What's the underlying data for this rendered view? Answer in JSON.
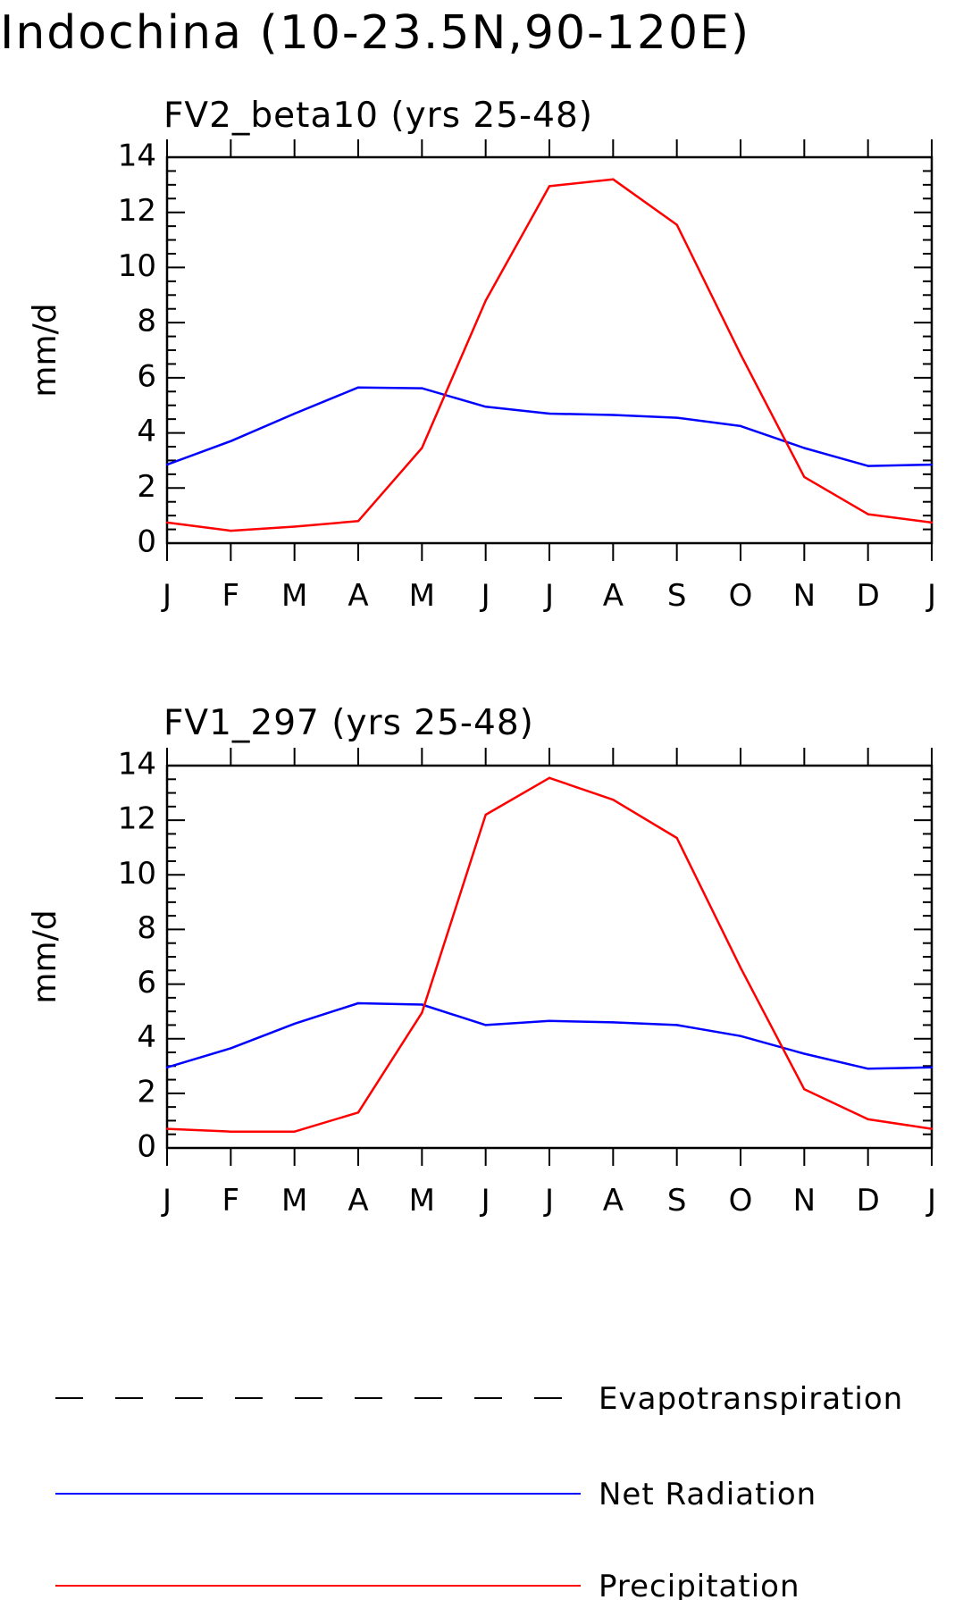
{
  "title": "Indochina (10-23.5N,90-120E)",
  "colors": {
    "net_radiation": "#0000ff",
    "precipitation": "#ff0000",
    "evapotranspiration": "#000000",
    "axes": "#000000"
  },
  "chart_data": [
    {
      "type": "line",
      "title": "FV2_beta10 (yrs 25-48)",
      "xlabel": "",
      "ylabel": "mm/d",
      "ylim": [
        0,
        14
      ],
      "yticks": [
        "0",
        "2",
        "4",
        "6",
        "8",
        "10",
        "12",
        "14"
      ],
      "categories": [
        "J",
        "F",
        "M",
        "A",
        "M",
        "J",
        "J",
        "A",
        "S",
        "O",
        "N",
        "D",
        "J"
      ],
      "series": [
        {
          "name": "Net Radiation",
          "color": "#0000ff",
          "values": [
            2.85,
            3.7,
            4.7,
            5.65,
            5.62,
            4.95,
            4.7,
            4.65,
            4.55,
            4.25,
            3.45,
            2.8,
            2.85
          ]
        },
        {
          "name": "Precipitation",
          "color": "#ff0000",
          "values": [
            0.75,
            0.45,
            0.6,
            0.8,
            3.45,
            8.8,
            12.95,
            13.2,
            11.55,
            6.85,
            2.4,
            1.05,
            0.75
          ]
        }
      ]
    },
    {
      "type": "line",
      "title": "FV1_297 (yrs 25-48)",
      "xlabel": "",
      "ylabel": "mm/d",
      "ylim": [
        0,
        14
      ],
      "yticks": [
        "0",
        "2",
        "4",
        "6",
        "8",
        "10",
        "12",
        "14"
      ],
      "categories": [
        "J",
        "F",
        "M",
        "A",
        "M",
        "J",
        "J",
        "A",
        "S",
        "O",
        "N",
        "D",
        "J"
      ],
      "series": [
        {
          "name": "Net Radiation",
          "color": "#0000ff",
          "values": [
            2.95,
            3.65,
            4.55,
            5.3,
            5.25,
            4.5,
            4.65,
            4.6,
            4.5,
            4.1,
            3.45,
            2.9,
            2.95
          ]
        },
        {
          "name": "Precipitation",
          "color": "#ff0000",
          "values": [
            0.7,
            0.6,
            0.6,
            1.3,
            4.95,
            12.2,
            13.55,
            12.75,
            11.35,
            6.6,
            2.15,
            1.05,
            0.7
          ]
        }
      ]
    }
  ],
  "legend": [
    {
      "label": "Evapotranspiration",
      "color": "#000000",
      "style": "dashed"
    },
    {
      "label": "Net Radiation",
      "color": "#0000ff",
      "style": "solid"
    },
    {
      "label": "Precipitation",
      "color": "#ff0000",
      "style": "solid"
    }
  ]
}
